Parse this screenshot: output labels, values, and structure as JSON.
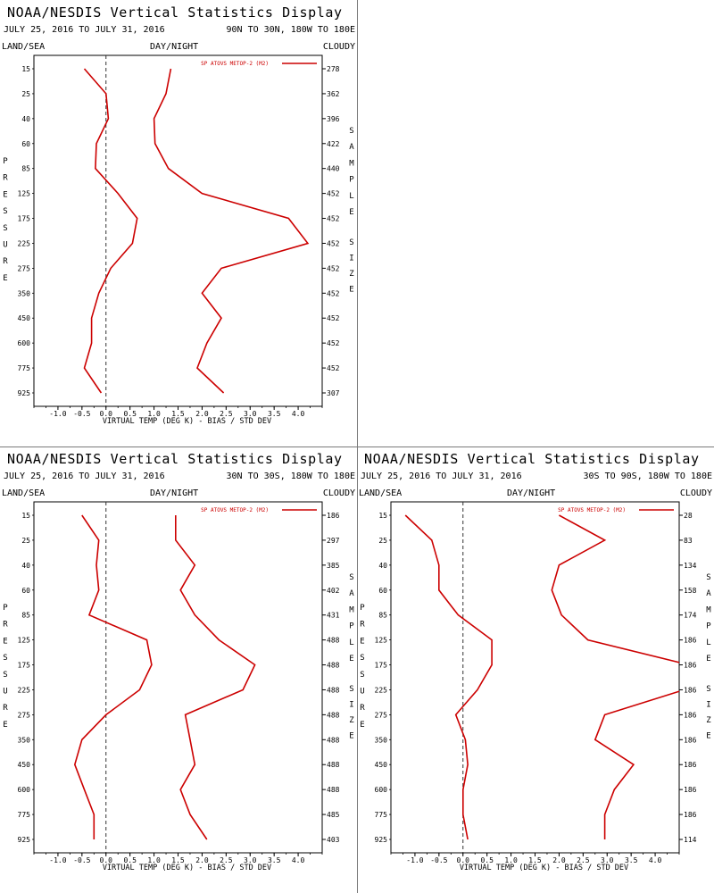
{
  "panels": [
    {
      "title": "NOAA/NESDIS Vertical Statistics Display",
      "date_range": "JULY 25, 2016 TO JULY 31, 2016",
      "region": "90N TO 30N, 180W TO 180E",
      "header_left": "LAND/SEA",
      "header_center": "DAY/NIGHT",
      "header_right": "CLOUDY",
      "left_axis_label": "PRESSURE",
      "right_axis_label": "SAMPLE SIZE",
      "x_axis_label": "VIRTUAL TEMP (DEG K) - BIAS / STD DEV",
      "legend": "SP ATOVS METOP-2 (M2)",
      "color": "#cc0000",
      "chart_data": {
        "type": "line",
        "pressure_levels": [
          15,
          25,
          40,
          60,
          85,
          125,
          175,
          225,
          275,
          350,
          450,
          600,
          775,
          925
        ],
        "xlim": [
          -1.5,
          4.5
        ],
        "xticks": [
          -1.0,
          -0.5,
          0.0,
          0.5,
          1.0,
          1.5,
          2.0,
          2.5,
          3.0,
          3.5,
          4.0
        ],
        "series": [
          {
            "name": "bias",
            "values": [
              -0.45,
              0.0,
              0.05,
              -0.2,
              -0.22,
              0.25,
              0.65,
              0.55,
              0.1,
              -0.15,
              -0.3,
              -0.3,
              -0.45,
              -0.1
            ]
          },
          {
            "name": "std dev",
            "values": [
              1.35,
              1.25,
              1.0,
              1.02,
              1.3,
              2.0,
              3.8,
              4.2,
              2.4,
              2.0,
              2.4,
              2.1,
              1.9,
              2.45
            ]
          }
        ],
        "sample_size": [
          "278",
          "362",
          "396",
          "422",
          "440",
          "452",
          "452",
          "452",
          "452",
          "452",
          "452",
          "452",
          "452",
          "307"
        ]
      }
    },
    {
      "title": "NOAA/NESDIS Vertical Statistics Display",
      "date_range": "JULY 25, 2016 TO JULY 31, 2016",
      "region": "30N TO 30S, 180W TO 180E",
      "header_left": "LAND/SEA",
      "header_center": "DAY/NIGHT",
      "header_right": "CLOUDY",
      "left_axis_label": "PRESSURE",
      "right_axis_label": "SAMPLE SIZE",
      "x_axis_label": "VIRTUAL TEMP (DEG K) - BIAS / STD DEV",
      "legend": "SP ATOVS METOP-2 (M2)",
      "color": "#cc0000",
      "chart_data": {
        "type": "line",
        "pressure_levels": [
          15,
          25,
          40,
          60,
          85,
          125,
          175,
          225,
          275,
          350,
          450,
          600,
          775,
          925
        ],
        "xlim": [
          -1.5,
          4.5
        ],
        "xticks": [
          -1.0,
          -0.5,
          0.0,
          0.5,
          1.0,
          1.5,
          2.0,
          2.5,
          3.0,
          3.5,
          4.0
        ],
        "series": [
          {
            "name": "bias",
            "values": [
              -0.5,
              -0.15,
              -0.2,
              -0.15,
              -0.35,
              0.85,
              0.95,
              0.7,
              0.0,
              -0.5,
              -0.65,
              -0.45,
              -0.25,
              -0.25
            ]
          },
          {
            "name": "std dev",
            "values": [
              1.45,
              1.45,
              1.85,
              1.55,
              1.85,
              2.35,
              3.1,
              2.85,
              1.65,
              1.75,
              1.85,
              1.55,
              1.75,
              2.1
            ]
          }
        ],
        "sample_size": [
          "186",
          "297",
          "385",
          "402",
          "431",
          "488",
          "488",
          "488",
          "488",
          "488",
          "488",
          "488",
          "485",
          "403"
        ]
      }
    },
    {
      "title": "NOAA/NESDIS Vertical Statistics Display",
      "date_range": "JULY 25, 2016 TO JULY 31, 2016",
      "region": "30S TO 90S, 180W TO 180E",
      "header_left": "LAND/SEA",
      "header_center": "DAY/NIGHT",
      "header_right": "CLOUDY",
      "left_axis_label": "PRESSURE",
      "right_axis_label": "SAMPLE SIZE",
      "x_axis_label": "VIRTUAL TEMP (DEG K) - BIAS / STD DEV",
      "legend": "SP ATOVS METOP-2 (M2)",
      "color": "#cc0000",
      "chart_data": {
        "type": "line",
        "pressure_levels": [
          15,
          25,
          40,
          60,
          85,
          125,
          175,
          225,
          275,
          350,
          450,
          600,
          775,
          925
        ],
        "xlim": [
          -1.5,
          4.5
        ],
        "xticks": [
          -1.0,
          -0.5,
          0.0,
          0.5,
          1.0,
          1.5,
          2.0,
          2.5,
          3.0,
          3.5,
          4.0
        ],
        "series": [
          {
            "name": "bias",
            "values": [
              -1.2,
              -0.65,
              -0.5,
              -0.5,
              -0.1,
              0.6,
              0.6,
              0.3,
              -0.15,
              0.05,
              0.1,
              0.0,
              0.0,
              0.1
            ]
          },
          {
            "name": "std dev",
            "values": [
              2.0,
              2.95,
              2.0,
              1.85,
              2.05,
              2.6,
              4.7,
              4.6,
              2.95,
              2.75,
              3.55,
              3.15,
              2.95,
              2.95
            ]
          }
        ],
        "sample_size": [
          "28",
          "83",
          "134",
          "158",
          "174",
          "186",
          "186",
          "186",
          "186",
          "186",
          "186",
          "186",
          "186",
          "114"
        ]
      }
    }
  ]
}
